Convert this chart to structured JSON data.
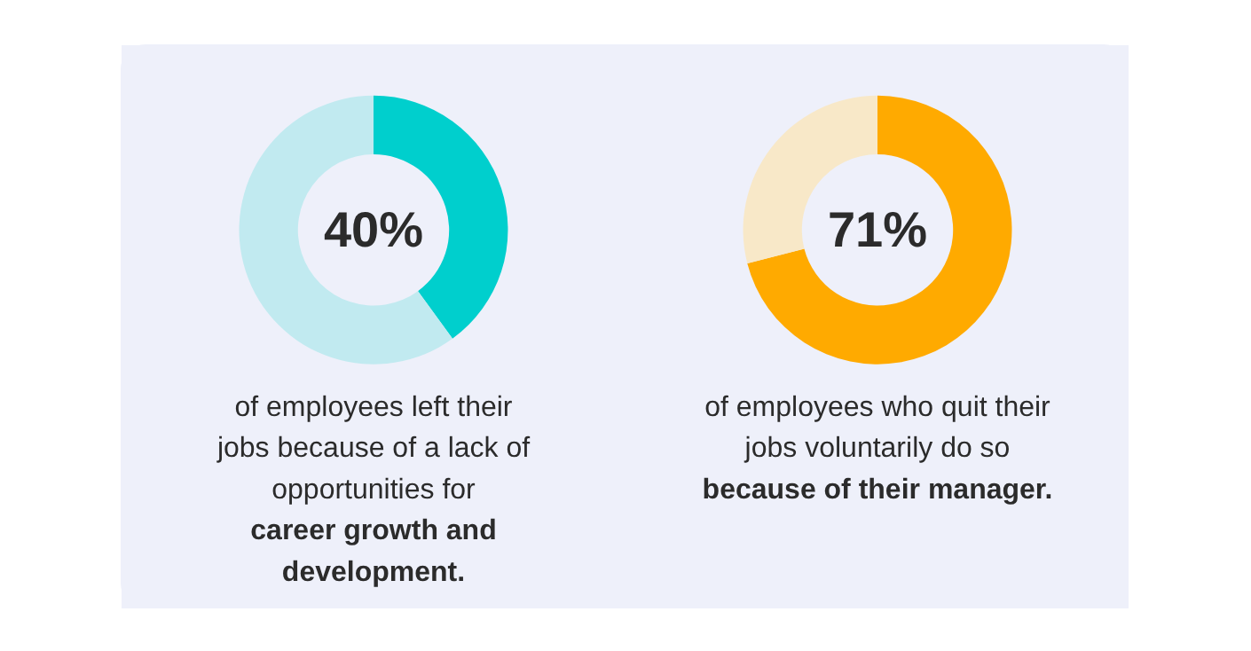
{
  "chart_data": [
    {
      "type": "donut",
      "categories": [
        null,
        null
      ],
      "values": [
        40,
        60
      ],
      "colors": [
        "#00cfcd",
        "#c1eaf0"
      ],
      "value_labels": [
        "40%",
        null
      ],
      "annotations": [
        "of employees left their jobs because of a lack of opportunities for",
        "career growth and development."
      ]
    },
    {
      "type": "donut",
      "categories": [
        null,
        null
      ],
      "values": [
        71,
        29
      ],
      "colors": [
        "#ffaa00",
        "#f8e8c8"
      ],
      "value_labels": [
        "71%",
        null
      ],
      "annotations": [
        "of employees who quit their jobs voluntarily do so",
        "because of their manager."
      ]
    }
  ]
}
